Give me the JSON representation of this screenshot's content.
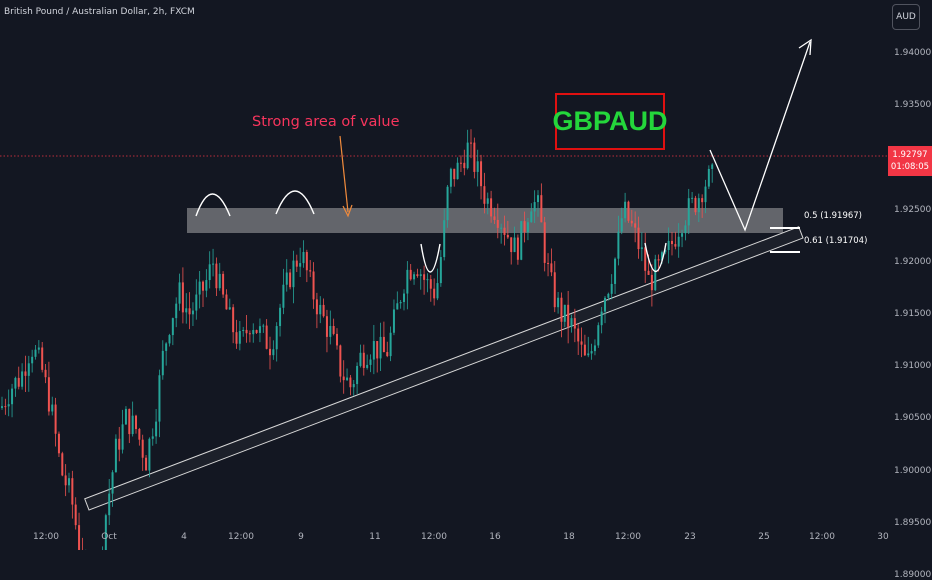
{
  "header": {
    "title": "British Pound / Australian Dollar, 2h, FXCM",
    "currency_button": "AUD"
  },
  "price_axis": {
    "ticks": [
      "1.94000",
      "1.93500",
      "1.93000",
      "1.92500",
      "1.92000",
      "1.91500",
      "1.91000",
      "1.90500",
      "1.90000",
      "1.89500",
      "1.89000"
    ],
    "current_price": "1.92797",
    "countdown": "01:08:05"
  },
  "time_axis": {
    "ticks": [
      "12:00",
      "Oct",
      "4",
      "12:00",
      "9",
      "11",
      "12:00",
      "16",
      "18",
      "12:00",
      "23",
      "25",
      "12:00",
      "30"
    ]
  },
  "annotations": {
    "strong_area_label": "Strong area of value",
    "symbol": "GBPAUD",
    "fib_05": "0.5 (1.91967)",
    "fib_061": "0.61 (1.91704)"
  },
  "colors": {
    "background": "#131722",
    "bull_candle": "#26a69a",
    "bear_candle": "#ef5350",
    "current_price_line": "#f23645",
    "annotation_text": "#f7355d",
    "symbol_text": "#24d63b",
    "symbol_border": "#e01010"
  },
  "chart_data": {
    "type": "candlestick",
    "title": "British Pound / Australian Dollar, 2h, FXCM",
    "x_ticks": [
      "12:00",
      "Oct",
      "4",
      "12:00",
      "9",
      "11",
      "12:00",
      "16",
      "18",
      "12:00",
      "23",
      "25",
      "12:00",
      "30"
    ],
    "ylim": [
      1.8865,
      1.943
    ],
    "close_path": [
      [
        0,
        1.906
      ],
      [
        10,
        1.908
      ],
      [
        20,
        1.909
      ],
      [
        30,
        1.912
      ],
      [
        40,
        1.91
      ],
      [
        50,
        1.906
      ],
      [
        60,
        1.9
      ],
      [
        70,
        1.8975
      ],
      [
        80,
        1.892
      ],
      [
        88,
        1.888
      ],
      [
        95,
        1.889
      ],
      [
        105,
        1.896
      ],
      [
        115,
        1.902
      ],
      [
        125,
        1.905
      ],
      [
        135,
        1.904
      ],
      [
        145,
        1.901
      ],
      [
        155,
        1.906
      ],
      [
        162,
        1.911
      ],
      [
        168,
        1.914
      ],
      [
        178,
        1.917
      ],
      [
        188,
        1.915
      ],
      [
        195,
        1.916
      ],
      [
        205,
        1.918
      ],
      [
        212,
        1.92
      ],
      [
        220,
        1.917
      ],
      [
        230,
        1.914
      ],
      [
        240,
        1.912
      ],
      [
        250,
        1.9145
      ],
      [
        260,
        1.913
      ],
      [
        270,
        1.912
      ],
      [
        280,
        1.916
      ],
      [
        290,
        1.919
      ],
      [
        300,
        1.921
      ],
      [
        310,
        1.9175
      ],
      [
        320,
        1.915
      ],
      [
        330,
        1.913
      ],
      [
        340,
        1.9095
      ],
      [
        350,
        1.908
      ],
      [
        360,
        1.911
      ],
      [
        372,
        1.912
      ],
      [
        385,
        1.911
      ],
      [
        395,
        1.915
      ],
      [
        405,
        1.919
      ],
      [
        415,
        1.92
      ],
      [
        425,
        1.918
      ],
      [
        435,
        1.917
      ],
      [
        442,
        1.922
      ],
      [
        448,
        1.928
      ],
      [
        458,
        1.929
      ],
      [
        466,
        1.931
      ],
      [
        475,
        1.929
      ],
      [
        485,
        1.926
      ],
      [
        495,
        1.925
      ],
      [
        505,
        1.923
      ],
      [
        515,
        1.921
      ],
      [
        522,
        1.923
      ],
      [
        530,
        1.926
      ],
      [
        538,
        1.925
      ],
      [
        545,
        1.92
      ],
      [
        552,
        1.917
      ],
      [
        560,
        1.915
      ],
      [
        570,
        1.914
      ],
      [
        580,
        1.9115
      ],
      [
        586,
        1.91
      ],
      [
        592,
        1.912
      ],
      [
        600,
        1.916
      ],
      [
        608,
        1.918
      ],
      [
        616,
        1.921
      ],
      [
        622,
        1.925
      ],
      [
        630,
        1.9235
      ],
      [
        640,
        1.921
      ],
      [
        648,
        1.918
      ],
      [
        655,
        1.919
      ],
      [
        663,
        1.92
      ],
      [
        672,
        1.922
      ],
      [
        680,
        1.924
      ],
      [
        688,
        1.925
      ],
      [
        696,
        1.926
      ],
      [
        703,
        1.9275
      ],
      [
        710,
        1.928
      ]
    ]
  }
}
